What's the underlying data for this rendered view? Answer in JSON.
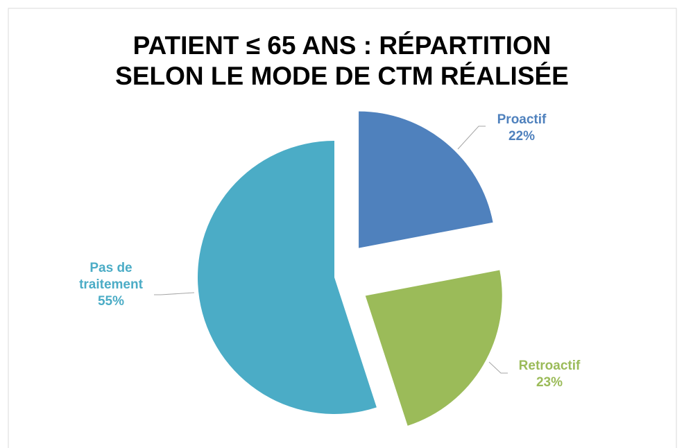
{
  "chart_data": {
    "type": "pie",
    "title": [
      "PATIENT ≤ 65 ANS : RÉPARTITION",
      "SELON LE MODE DE CTM RÉALISÉE"
    ],
    "categories": [
      "Proactif",
      "Retroactif",
      "Pas de traitement"
    ],
    "values": [
      22,
      23,
      55
    ],
    "value_labels": [
      "22%",
      "23%",
      "55%"
    ],
    "colors": [
      "#4f81bd",
      "#9bbb59",
      "#4bacc6"
    ]
  }
}
